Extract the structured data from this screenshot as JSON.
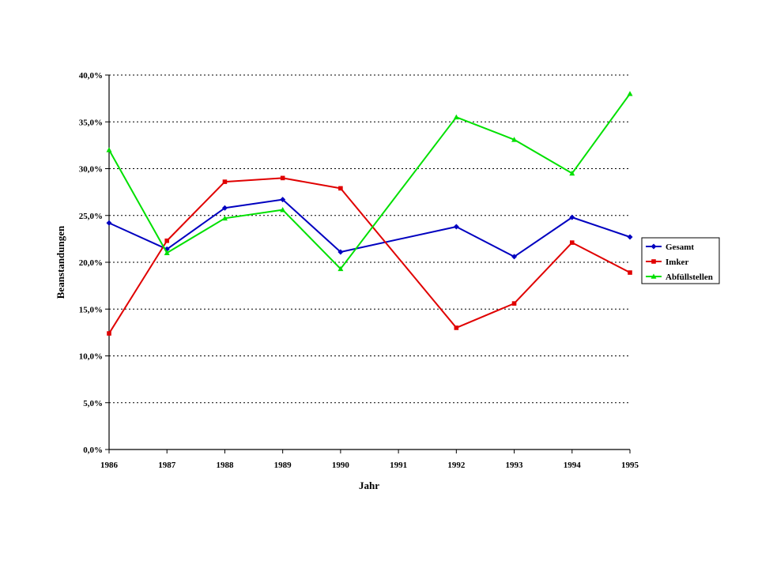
{
  "chart_data": {
    "type": "line",
    "xlabel": "Jahr",
    "ylabel": "Beanstandungen",
    "x": [
      "1986",
      "1987",
      "1988",
      "1989",
      "1990",
      "1991",
      "1992",
      "1993",
      "1994",
      "1995"
    ],
    "yticks": [
      "0,0%",
      "5,0%",
      "10,0%",
      "15,0%",
      "20,0%",
      "25,0%",
      "30,0%",
      "35,0%",
      "40,0%"
    ],
    "ylim": [
      0,
      40
    ],
    "grid": "horizontal dotted",
    "legend_position": "right",
    "series": [
      {
        "name": "Gesamt",
        "color": "#0000c0",
        "marker": "diamond",
        "values": [
          24.2,
          21.4,
          25.8,
          26.7,
          21.1,
          null,
          23.8,
          20.6,
          24.8,
          22.7
        ]
      },
      {
        "name": "Imker",
        "color": "#e00000",
        "marker": "square",
        "values": [
          12.4,
          22.3,
          28.6,
          29.0,
          27.9,
          null,
          13.0,
          15.6,
          22.1,
          18.9
        ]
      },
      {
        "name": "Abfüllstellen",
        "color": "#00e000",
        "marker": "triangle",
        "values": [
          32.0,
          21.0,
          24.7,
          25.6,
          19.3,
          null,
          35.5,
          33.1,
          29.5,
          38.0
        ]
      }
    ]
  }
}
